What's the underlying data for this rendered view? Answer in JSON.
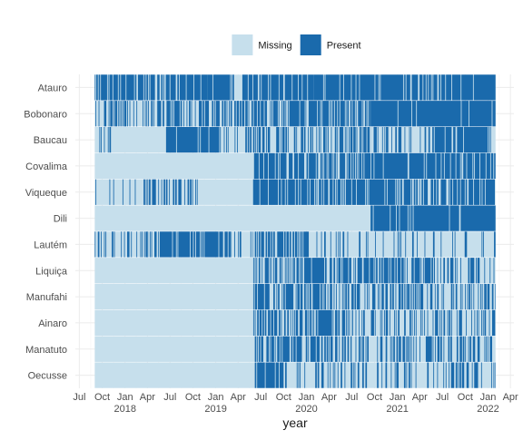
{
  "chart_data": {
    "type": "heatmap",
    "title": "",
    "xlabel": "year",
    "ylabel": "",
    "x_range": [
      "2017-06-15",
      "2022-04-15"
    ],
    "data_x_range": [
      "2017-09-01",
      "2022-01-31"
    ],
    "x_tick_labels": [
      "Jul",
      "Oct",
      "Jan",
      "Apr",
      "Jul",
      "Oct",
      "Jan",
      "Apr",
      "Jul",
      "Oct",
      "Jan",
      "Apr",
      "Jul",
      "Oct",
      "Jan",
      "Apr",
      "Jul",
      "Oct",
      "Jan",
      "Apr"
    ],
    "x_year_labels": [
      "2018",
      "2019",
      "2020",
      "2021",
      "2022"
    ],
    "categories": [
      "Atauro",
      "Bobonaro",
      "Baucau",
      "Covalima",
      "Viqueque",
      "Dili",
      "Lautém",
      "Liquiça",
      "Manufahi",
      "Ainaro",
      "Manatuto",
      "Oecusse"
    ],
    "legend": {
      "position": "top",
      "entries": [
        {
          "label": "Missing",
          "color": "#c6dfec"
        },
        {
          "label": "Present",
          "color": "#1a6aac"
        }
      ]
    },
    "grid": true,
    "series": [
      {
        "region": "Atauro",
        "present_share": 0.9,
        "periods": [
          [
            "2017-09-01",
            "2018-11-30",
            0.72
          ],
          [
            "2018-11-30",
            "2019-02-28",
            0.97
          ],
          [
            "2019-02-28",
            "2019-04-15",
            0.45
          ],
          [
            "2019-04-15",
            "2020-01-31",
            0.85
          ],
          [
            "2020-01-31",
            "2020-07-31",
            0.95
          ],
          [
            "2020-07-31",
            "2021-01-31",
            0.88
          ],
          [
            "2021-01-31",
            "2021-06-30",
            0.8
          ],
          [
            "2021-06-30",
            "2022-01-31",
            0.97
          ]
        ]
      },
      {
        "region": "Bobonaro",
        "present_share": 0.75,
        "periods": [
          [
            "2017-09-01",
            "2018-09-30",
            0.55
          ],
          [
            "2018-09-30",
            "2019-04-30",
            0.5
          ],
          [
            "2019-04-30",
            "2020-09-15",
            0.62
          ],
          [
            "2020-09-15",
            "2022-01-31",
            0.97
          ]
        ]
      },
      {
        "region": "Baucau",
        "present_share": 0.55,
        "periods": [
          [
            "2017-09-01",
            "2017-12-01",
            0.3
          ],
          [
            "2017-12-01",
            "2018-06-15",
            0.0
          ],
          [
            "2018-06-15",
            "2019-01-15",
            0.9
          ],
          [
            "2019-01-15",
            "2019-04-30",
            0.3
          ],
          [
            "2019-04-30",
            "2020-09-15",
            0.5
          ],
          [
            "2020-09-15",
            "2021-05-31",
            0.3
          ],
          [
            "2021-05-31",
            "2021-12-31",
            0.9
          ],
          [
            "2021-12-31",
            "2022-01-31",
            0.3
          ]
        ]
      },
      {
        "region": "Covalima",
        "present_share": 0.55,
        "periods": [
          [
            "2017-09-01",
            "2019-06-01",
            0.0
          ],
          [
            "2019-06-01",
            "2020-09-15",
            0.72
          ],
          [
            "2020-09-15",
            "2021-04-30",
            0.85
          ],
          [
            "2021-04-30",
            "2022-01-31",
            0.72
          ]
        ]
      },
      {
        "region": "Viqueque",
        "present_share": 0.5,
        "periods": [
          [
            "2017-09-01",
            "2018-03-01",
            0.12
          ],
          [
            "2018-03-01",
            "2018-11-01",
            0.35
          ],
          [
            "2018-11-01",
            "2019-06-01",
            0.05
          ],
          [
            "2019-06-01",
            "2022-01-31",
            0.72
          ]
        ]
      },
      {
        "region": "Dili",
        "present_share": 0.35,
        "periods": [
          [
            "2017-09-01",
            "2020-09-15",
            0.0
          ],
          [
            "2020-09-15",
            "2021-03-01",
            0.85
          ],
          [
            "2021-03-01",
            "2022-01-31",
            0.97
          ]
        ]
      },
      {
        "region": "Lautém",
        "present_share": 0.45,
        "periods": [
          [
            "2017-09-01",
            "2018-04-01",
            0.35
          ],
          [
            "2018-04-01",
            "2019-03-01",
            0.8
          ],
          [
            "2019-03-01",
            "2019-06-01",
            0.3
          ],
          [
            "2019-06-01",
            "2020-01-01",
            0.55
          ],
          [
            "2020-01-01",
            "2022-01-31",
            0.18
          ]
        ]
      },
      {
        "region": "Liquiça",
        "present_share": 0.4,
        "periods": [
          [
            "2017-09-01",
            "2019-06-01",
            0.0
          ],
          [
            "2019-06-01",
            "2021-06-01",
            0.6
          ],
          [
            "2021-06-01",
            "2022-01-31",
            0.35
          ]
        ]
      },
      {
        "region": "Manufahi",
        "present_share": 0.35,
        "periods": [
          [
            "2017-09-01",
            "2019-06-01",
            0.01
          ],
          [
            "2019-06-01",
            "2020-03-01",
            0.7
          ],
          [
            "2020-03-01",
            "2022-01-31",
            0.38
          ]
        ]
      },
      {
        "region": "Ainaro",
        "present_share": 0.35,
        "periods": [
          [
            "2017-09-01",
            "2019-06-01",
            0.0
          ],
          [
            "2019-06-01",
            "2020-07-01",
            0.65
          ],
          [
            "2020-07-01",
            "2022-01-31",
            0.35
          ]
        ]
      },
      {
        "region": "Manatuto",
        "present_share": 0.35,
        "periods": [
          [
            "2017-09-01",
            "2019-06-01",
            0.0
          ],
          [
            "2019-06-01",
            "2020-07-01",
            0.6
          ],
          [
            "2020-07-01",
            "2022-01-31",
            0.35
          ]
        ]
      },
      {
        "region": "Oecusse",
        "present_share": 0.3,
        "periods": [
          [
            "2017-09-01",
            "2019-06-01",
            0.0
          ],
          [
            "2019-06-01",
            "2019-10-01",
            0.75
          ],
          [
            "2019-10-01",
            "2022-01-31",
            0.3
          ]
        ]
      }
    ]
  }
}
